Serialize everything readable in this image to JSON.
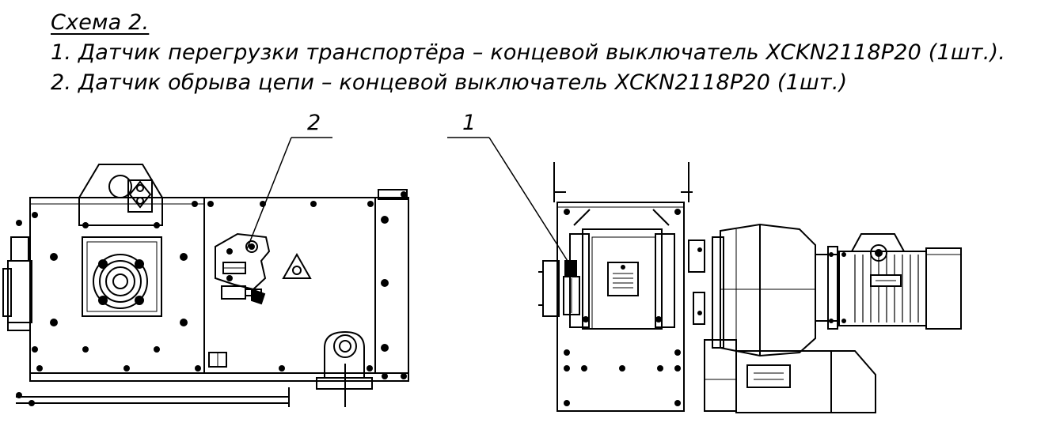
{
  "notes": {
    "title": "Схема 2.",
    "items": [
      "1. Датчик перегрузки транспортёра – концевой выключатель XCKN2118P20 (1шт.).",
      "2. Датчик обрыва цепи – концевой выключатель XCKN2118P20 (1шт.)"
    ]
  },
  "callouts": {
    "c1": "1",
    "c2": "2"
  }
}
